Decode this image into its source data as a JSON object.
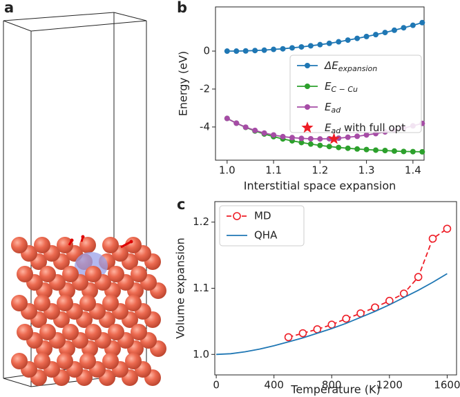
{
  "panel_labels": [
    "a",
    "b",
    "c"
  ],
  "chart_data": [
    {
      "type": "line",
      "xlabel": "Interstitial space expansion",
      "ylabel": "Energy (eV)",
      "xlim": [
        0.975,
        1.424
      ],
      "ylim": [
        -5.75,
        2.33
      ],
      "xticks": [
        {
          "value": 1.0,
          "label": "1.0"
        },
        {
          "value": 1.1,
          "label": "1.1"
        },
        {
          "value": 1.2,
          "label": "1.2"
        },
        {
          "value": 1.3,
          "label": "1.3"
        },
        {
          "value": 1.4,
          "label": "1.4"
        }
      ],
      "yticks": [
        -4,
        -2,
        0
      ],
      "legend": "upper right",
      "series": [
        {
          "name": {
            "text": "ΔE",
            "sub": "expansion"
          },
          "color": "#1f77b4",
          "marker": "circle",
          "linestyle": "solid",
          "x": [
            1.0,
            1.02,
            1.04,
            1.06,
            1.08,
            1.1,
            1.12,
            1.14,
            1.16,
            1.18,
            1.2,
            1.22,
            1.24,
            1.26,
            1.28,
            1.3,
            1.32,
            1.34,
            1.36,
            1.38,
            1.4,
            1.42
          ],
          "values": [
            0,
            0,
            0.01,
            0.03,
            0.05,
            0.09,
            0.12,
            0.17,
            0.22,
            0.28,
            0.34,
            0.41,
            0.49,
            0.58,
            0.67,
            0.77,
            0.87,
            0.98,
            1.1,
            1.23,
            1.36,
            1.5
          ]
        },
        {
          "name": {
            "text": "E",
            "sub": "C − Cu"
          },
          "color": "#2ca02c",
          "marker": "circle",
          "linestyle": "solid",
          "x": [
            1.0,
            1.02,
            1.04,
            1.06,
            1.08,
            1.1,
            1.12,
            1.14,
            1.16,
            1.18,
            1.2,
            1.22,
            1.24,
            1.26,
            1.28,
            1.3,
            1.32,
            1.34,
            1.36,
            1.38,
            1.4,
            1.42
          ],
          "values": [
            -3.55,
            -3.8,
            -4.02,
            -4.21,
            -4.37,
            -4.51,
            -4.63,
            -4.73,
            -4.82,
            -4.9,
            -4.97,
            -5.03,
            -5.08,
            -5.12,
            -5.16,
            -5.19,
            -5.22,
            -5.24,
            -5.27,
            -5.29,
            -5.3,
            -5.31
          ]
        },
        {
          "name": {
            "text": "E",
            "sub": "ad"
          },
          "color": "#a64ca6",
          "marker": "circle",
          "linestyle": "solid",
          "x": [
            1.0,
            1.02,
            1.04,
            1.06,
            1.08,
            1.1,
            1.12,
            1.14,
            1.16,
            1.18,
            1.2,
            1.22,
            1.24,
            1.26,
            1.28,
            1.3,
            1.32,
            1.34,
            1.36,
            1.38,
            1.4,
            1.42
          ],
          "values": [
            -3.55,
            -3.8,
            -4.01,
            -4.18,
            -4.32,
            -4.42,
            -4.51,
            -4.56,
            -4.6,
            -4.62,
            -4.63,
            -4.62,
            -4.59,
            -4.54,
            -4.49,
            -4.42,
            -4.35,
            -4.26,
            -4.17,
            -4.06,
            -3.94,
            -3.81
          ]
        },
        {
          "name": {
            "text": "E",
            "sub": "ad",
            "tail": " with full opt"
          },
          "color": "#ee1c25",
          "marker": "star",
          "linestyle": "none",
          "x": [
            1.23
          ],
          "values": [
            -4.63
          ]
        }
      ]
    },
    {
      "type": "line",
      "xlabel": "Temperature (K)",
      "ylabel": "Volume expansion",
      "xlim": [
        -10,
        1665
      ],
      "ylim": [
        0.969,
        1.231
      ],
      "xticks": [
        0,
        400,
        800,
        1200,
        1600
      ],
      "yticks": [
        {
          "value": 1.0,
          "label": "1.0"
        },
        {
          "value": 1.1,
          "label": "1.1"
        },
        {
          "value": 1.2,
          "label": "1.2"
        }
      ],
      "legend": "upper left",
      "series": [
        {
          "name": "MD",
          "color": "#ee1c25",
          "marker": "open-circle",
          "linestyle": "dashed",
          "x": [
            500,
            600,
            700,
            800,
            900,
            1000,
            1100,
            1200,
            1300,
            1400,
            1500,
            1600
          ],
          "values": [
            1.026,
            1.032,
            1.038,
            1.045,
            1.054,
            1.062,
            1.071,
            1.081,
            1.092,
            1.117,
            1.175,
            1.19
          ]
        },
        {
          "name": "QHA",
          "color": "#1f77b4",
          "marker": "none",
          "linestyle": "solid",
          "x": [
            0,
            100,
            200,
            300,
            400,
            500,
            600,
            700,
            800,
            900,
            1000,
            1100,
            1200,
            1300,
            1400,
            1500,
            1600
          ],
          "values": [
            1.0,
            1.001,
            1.004,
            1.008,
            1.013,
            1.019,
            1.025,
            1.032,
            1.039,
            1.047,
            1.056,
            1.065,
            1.075,
            1.086,
            1.097,
            1.109,
            1.122
          ]
        }
      ]
    }
  ]
}
